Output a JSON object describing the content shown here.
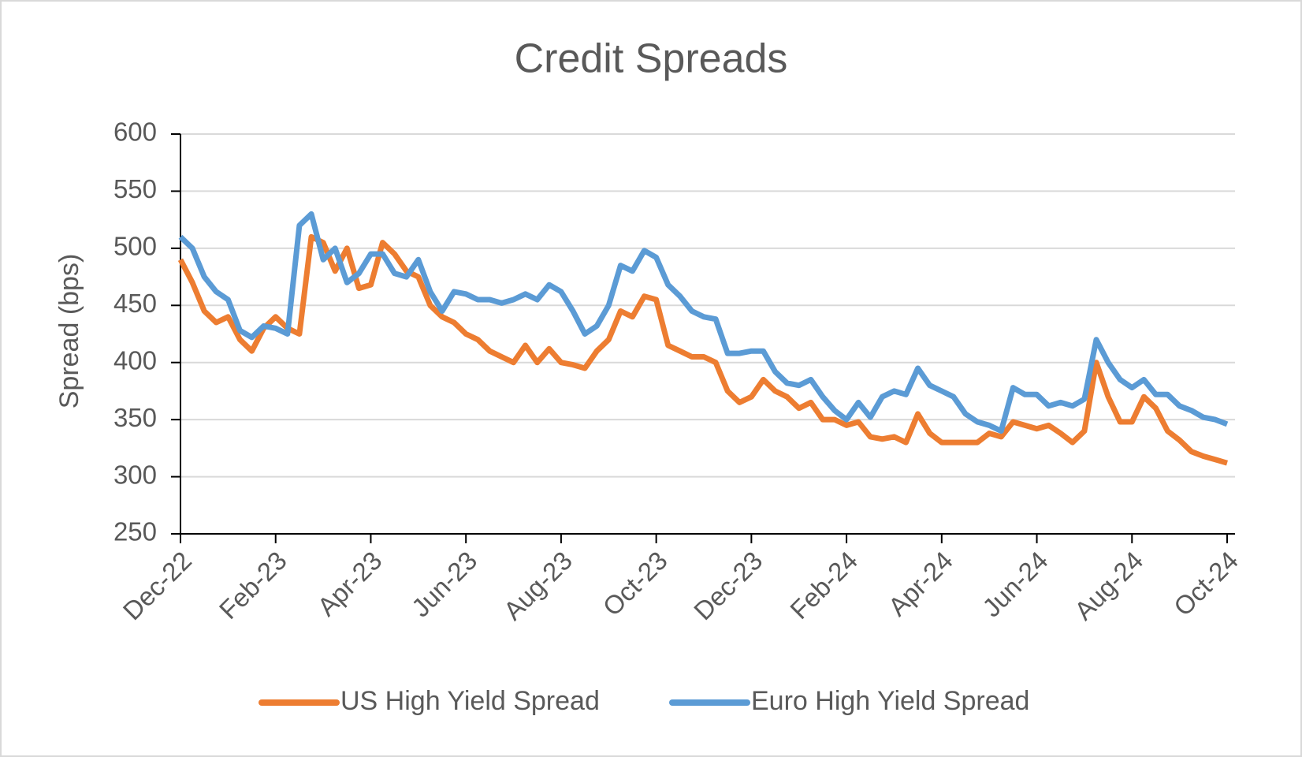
{
  "chart_data": {
    "type": "line",
    "title": "Credit Spreads",
    "y_label": "Spread (bps)",
    "categories": [
      "Dec-22",
      null,
      null,
      null,
      null,
      null,
      null,
      null,
      "Feb-23",
      null,
      null,
      null,
      null,
      null,
      null,
      null,
      "Apr-23",
      null,
      null,
      null,
      null,
      null,
      null,
      null,
      "Jun-23",
      null,
      null,
      null,
      null,
      null,
      null,
      null,
      "Aug-23",
      null,
      null,
      null,
      null,
      null,
      null,
      null,
      "Oct-23",
      null,
      null,
      null,
      null,
      null,
      null,
      null,
      "Dec-23",
      null,
      null,
      null,
      null,
      null,
      null,
      null,
      "Feb-24",
      null,
      null,
      null,
      null,
      null,
      null,
      null,
      "Apr-24",
      null,
      null,
      null,
      null,
      null,
      null,
      null,
      "Jun-24",
      null,
      null,
      null,
      null,
      null,
      null,
      null,
      "Aug-24",
      null,
      null,
      null,
      null,
      null,
      null,
      null,
      "Oct-24"
    ],
    "series": [
      {
        "name": "US High Yield Spread",
        "color": "#ed7d31",
        "values": [
          490,
          470,
          445,
          435,
          440,
          420,
          410,
          430,
          440,
          430,
          425,
          510,
          505,
          480,
          500,
          465,
          468,
          505,
          495,
          480,
          475,
          450,
          440,
          435,
          425,
          420,
          410,
          405,
          400,
          415,
          400,
          412,
          400,
          398,
          395,
          410,
          420,
          445,
          440,
          458,
          455,
          415,
          410,
          405,
          405,
          400,
          375,
          365,
          370,
          385,
          375,
          370,
          360,
          365,
          350,
          350,
          345,
          348,
          335,
          333,
          335,
          330,
          355,
          338,
          330,
          330,
          330,
          330,
          338,
          335,
          348,
          345,
          342,
          345,
          338,
          330,
          340,
          400,
          370,
          348,
          348,
          370,
          360,
          340,
          332,
          322,
          318,
          315,
          312
        ]
      },
      {
        "name": "Euro High Yield Spread",
        "color": "#5b9bd5",
        "values": [
          510,
          500,
          475,
          462,
          455,
          428,
          422,
          432,
          430,
          425,
          520,
          530,
          490,
          500,
          470,
          478,
          495,
          495,
          478,
          475,
          490,
          462,
          445,
          462,
          460,
          455,
          455,
          452,
          455,
          460,
          455,
          468,
          462,
          445,
          425,
          432,
          450,
          485,
          480,
          498,
          492,
          468,
          458,
          445,
          440,
          438,
          408,
          408,
          410,
          410,
          392,
          382,
          380,
          385,
          370,
          358,
          350,
          365,
          352,
          370,
          375,
          372,
          395,
          380,
          375,
          370,
          355,
          348,
          345,
          340,
          378,
          372,
          372,
          362,
          365,
          362,
          368,
          420,
          400,
          385,
          378,
          385,
          372,
          372,
          362,
          358,
          352,
          350,
          346
        ]
      }
    ],
    "ylim": [
      250,
      600
    ],
    "yticks": [
      250,
      300,
      350,
      400,
      450,
      500,
      550,
      600
    ],
    "grid": true,
    "legend": "bottom"
  }
}
